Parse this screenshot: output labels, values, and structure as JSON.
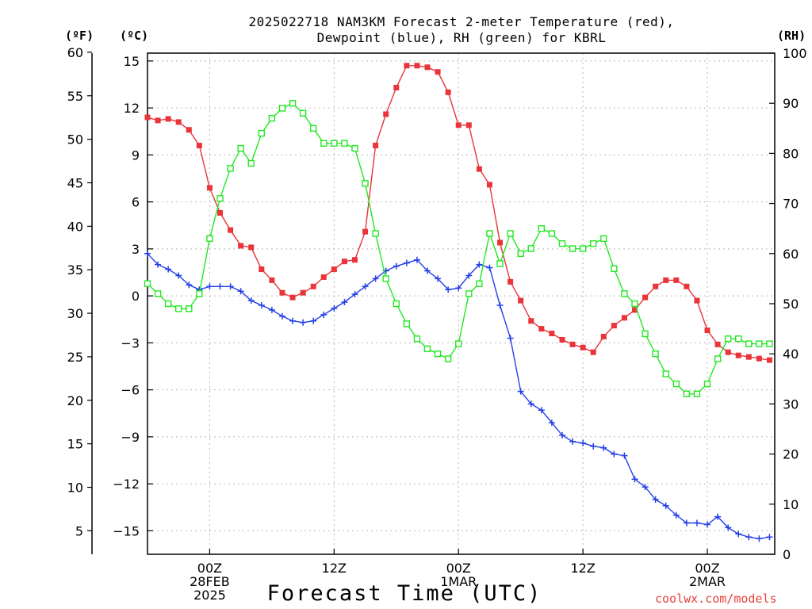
{
  "chart_data": {
    "type": "line",
    "title_lines": [
      "2025022718 NAM3KM Forecast 2-meter Temperature (red),",
      "Dewpoint (blue), RH (green) for KBRL"
    ],
    "xlabel": "Forecast Time (UTC)",
    "units": {
      "fahrenheit": "(ºF)",
      "celsius": "(ºC)",
      "rh": "(RH)"
    },
    "x_hours_range": [
      -6,
      54.5
    ],
    "x_ticks": [
      {
        "hour": 0,
        "lines": [
          "00Z",
          "28FEB",
          "2025"
        ]
      },
      {
        "hour": 12,
        "lines": [
          "12Z"
        ]
      },
      {
        "hour": 24,
        "lines": [
          "00Z",
          "1MAR"
        ]
      },
      {
        "hour": 36,
        "lines": [
          "12Z"
        ]
      },
      {
        "hour": 48,
        "lines": [
          "00Z",
          "2MAR"
        ]
      }
    ],
    "yaxis_celsius": {
      "range": [
        -16.5,
        15.5
      ],
      "ticks": [
        "15",
        "12",
        "9",
        "6",
        "3",
        "0",
        "−3",
        "−6",
        "−9",
        "−12",
        "−15"
      ]
    },
    "yaxis_fahrenheit": {
      "ticks": [
        "60",
        "55",
        "50",
        "45",
        "40",
        "35",
        "30",
        "25",
        "20",
        "15",
        "10",
        "5"
      ]
    },
    "yaxis_rh": {
      "range": [
        0,
        100
      ],
      "ticks": [
        "100",
        "90",
        "80",
        "70",
        "60",
        "50",
        "40",
        "30",
        "20",
        "10",
        "0"
      ]
    },
    "grid": true,
    "series": [
      {
        "name": "Temperature",
        "axis": "celsius",
        "color": "#e8343a",
        "marker": "filled-square",
        "x": [
          -6,
          -5,
          -4,
          -3,
          -2,
          -1,
          0,
          1,
          2,
          3,
          4,
          5,
          6,
          7,
          8,
          9,
          10,
          11,
          12,
          13,
          14,
          15,
          16,
          17,
          18,
          19,
          20,
          21,
          22,
          23,
          24,
          25,
          26,
          27,
          28,
          29,
          30,
          31,
          32,
          33,
          34,
          35,
          36,
          37,
          38,
          39,
          40,
          41,
          42,
          43,
          44,
          45,
          46,
          47,
          48,
          49,
          50,
          51,
          52,
          53,
          54
        ],
        "values": [
          11.4,
          11.2,
          11.3,
          11.1,
          10.6,
          9.6,
          6.9,
          5.3,
          4.2,
          3.2,
          3.1,
          1.7,
          1.0,
          0.2,
          -0.1,
          0.2,
          0.6,
          1.2,
          1.7,
          2.2,
          2.3,
          4.1,
          9.6,
          11.6,
          13.3,
          14.7,
          14.7,
          14.6,
          14.3,
          13.0,
          10.9,
          10.9,
          8.1,
          7.1,
          3.4,
          0.9,
          -0.3,
          -1.6,
          -2.1,
          -2.4,
          -2.8,
          -3.1,
          -3.3,
          -3.6,
          -2.6,
          -1.9,
          -1.4,
          -0.9,
          -0.1,
          0.6,
          1.0,
          1.0,
          0.6,
          -0.3,
          -2.2,
          -3.1,
          -3.6,
          -3.8,
          -3.9,
          -4.0,
          -4.1
        ]
      },
      {
        "name": "Dewpoint",
        "axis": "celsius",
        "color": "#2340e8",
        "marker": "plus",
        "x": [
          -6,
          -5,
          -4,
          -3,
          -2,
          -1,
          0,
          1,
          2,
          3,
          4,
          5,
          6,
          7,
          8,
          9,
          10,
          11,
          12,
          13,
          14,
          15,
          16,
          17,
          18,
          19,
          20,
          21,
          22,
          23,
          24,
          25,
          26,
          27,
          28,
          29,
          30,
          31,
          32,
          33,
          34,
          35,
          36,
          37,
          38,
          39,
          40,
          41,
          42,
          43,
          44,
          45,
          46,
          47,
          48,
          49,
          50,
          51,
          52,
          53,
          54
        ],
        "values": [
          2.7,
          2.0,
          1.7,
          1.3,
          0.7,
          0.4,
          0.6,
          0.6,
          0.6,
          0.3,
          -0.3,
          -0.6,
          -0.9,
          -1.3,
          -1.6,
          -1.7,
          -1.6,
          -1.2,
          -0.8,
          -0.4,
          0.1,
          0.6,
          1.1,
          1.6,
          1.9,
          2.1,
          2.3,
          1.6,
          1.1,
          0.4,
          0.5,
          1.3,
          2.0,
          1.8,
          -0.6,
          -2.7,
          -6.1,
          -6.9,
          -7.3,
          -8.1,
          -8.9,
          -9.3,
          -9.4,
          -9.6,
          -9.7,
          -10.1,
          -10.2,
          -11.7,
          -12.2,
          -13.0,
          -13.4,
          -14.0,
          -14.5,
          -14.5,
          -14.6,
          -14.1,
          -14.8,
          -15.2,
          -15.4,
          -15.5,
          -15.4
        ]
      },
      {
        "name": "RH",
        "axis": "rh",
        "color": "#22e822",
        "marker": "open-square",
        "x": [
          -6,
          -5,
          -4,
          -3,
          -2,
          -1,
          0,
          1,
          2,
          3,
          4,
          5,
          6,
          7,
          8,
          9,
          10,
          11,
          12,
          13,
          14,
          15,
          16,
          17,
          18,
          19,
          20,
          21,
          22,
          23,
          24,
          25,
          26,
          27,
          28,
          29,
          30,
          31,
          32,
          33,
          34,
          35,
          36,
          37,
          38,
          39,
          40,
          41,
          42,
          43,
          44,
          45,
          46,
          47,
          48,
          49,
          50,
          51,
          52,
          53,
          54
        ],
        "values": [
          54,
          52,
          50,
          49,
          49,
          52,
          63,
          71,
          77,
          81,
          78,
          84,
          87,
          89,
          90,
          88,
          85,
          82,
          82,
          82,
          81,
          74,
          64,
          55,
          50,
          46,
          43,
          41,
          40,
          39,
          42,
          52,
          54,
          64,
          58,
          64,
          60,
          61,
          65,
          64,
          62,
          61,
          61,
          62,
          63,
          57,
          52,
          50,
          44,
          40,
          36,
          34,
          32,
          32,
          34,
          39,
          43,
          43,
          42,
          42,
          42
        ]
      }
    ]
  }
}
